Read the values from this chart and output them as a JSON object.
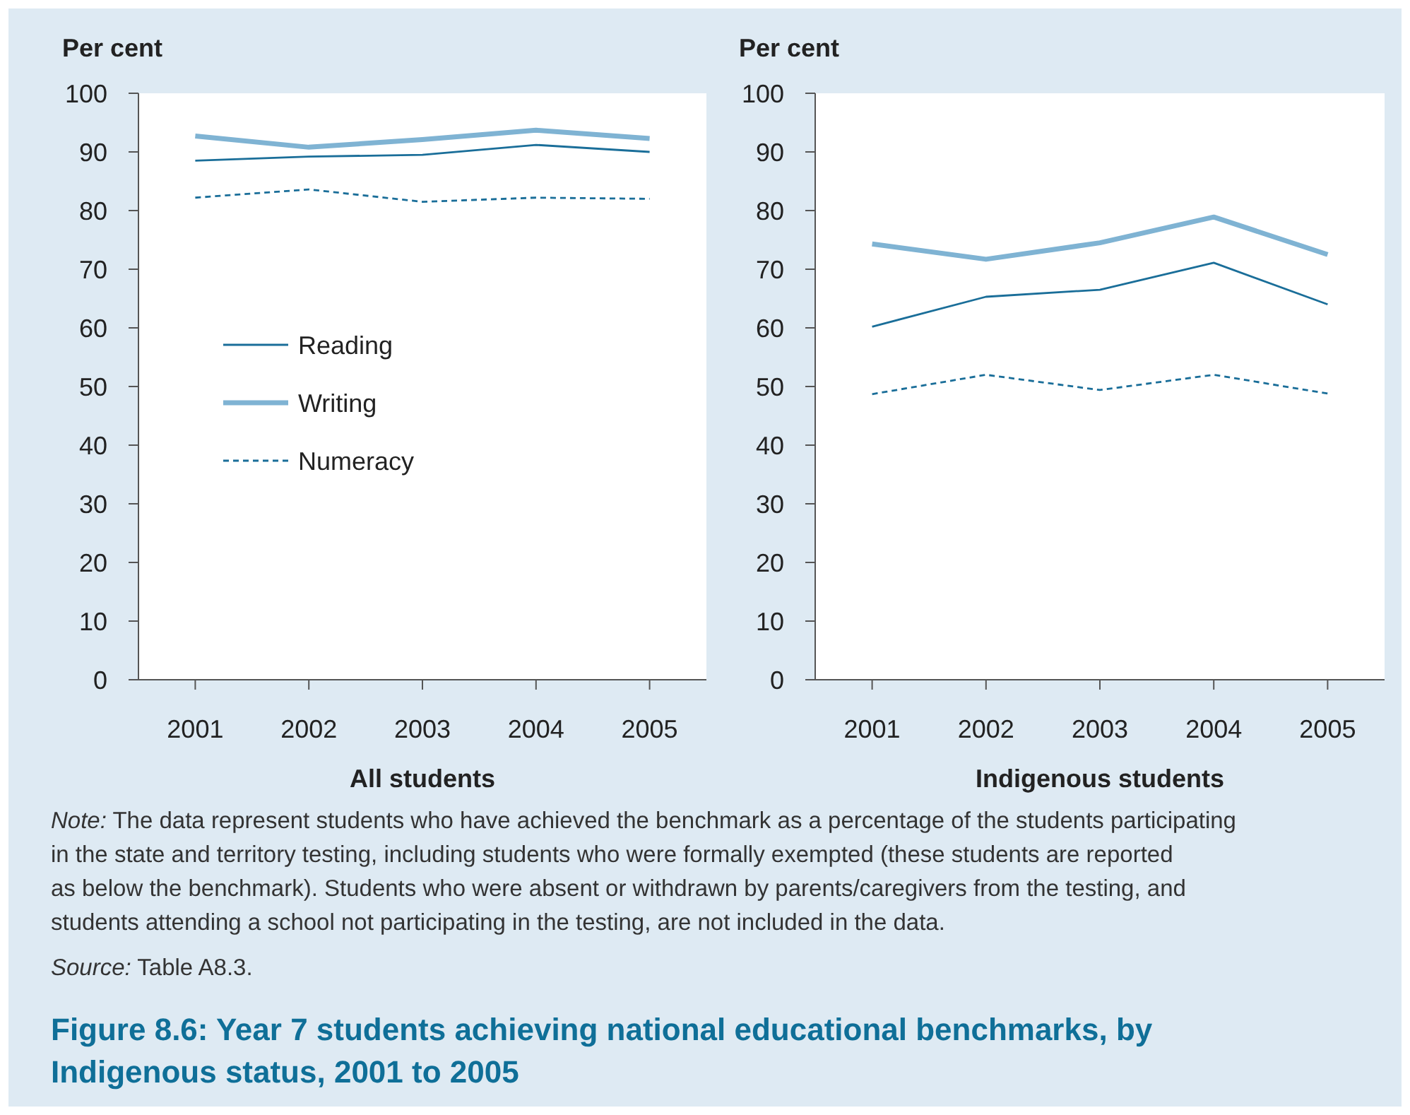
{
  "chart_data": [
    {
      "type": "line",
      "title": "Figure 8.6: Year 7 students achieving national educational benchmarks, by Indigenous status, 2001 to 2005",
      "ylabel": "Per cent",
      "xlabel": "All students",
      "categories": [
        "2001",
        "2002",
        "2003",
        "2004",
        "2005"
      ],
      "ylim": [
        0,
        100
      ],
      "yticks": [
        0,
        10,
        20,
        30,
        40,
        50,
        60,
        70,
        80,
        90,
        100
      ],
      "grid": false,
      "legend": "center left",
      "marker": "none",
      "series": [
        {
          "name": "Reading",
          "color": "#1a6e99",
          "line_style": "solid",
          "values": [
            88.5,
            89.2,
            89.5,
            91.2,
            90.0
          ]
        },
        {
          "name": "Writing",
          "color": "#7fb3d3",
          "line_style": "solid",
          "values": [
            92.7,
            90.8,
            92.1,
            93.7,
            92.3
          ]
        },
        {
          "name": "Numeracy",
          "color": "#1a6e99",
          "line_style": "dashed",
          "values": [
            82.2,
            83.6,
            81.5,
            82.2,
            82.0
          ]
        }
      ],
      "annotations": [
        "Note: The data represent students who have achieved the benchmark as a percentage of the students participating in the state and territory testing, including students who were formally exempted (these students are reported as below the benchmark). Students who were absent or withdrawn by parents/caregivers from the testing, and students attending a school not participating in the testing, are not included in the data.",
        "Source: Table A8.3."
      ]
    },
    {
      "type": "line",
      "ylabel": "Per cent",
      "xlabel": "Indigenous students",
      "categories": [
        "2001",
        "2002",
        "2003",
        "2004",
        "2005"
      ],
      "ylim": [
        0,
        100
      ],
      "yticks": [
        0,
        10,
        20,
        30,
        40,
        50,
        60,
        70,
        80,
        90,
        100
      ],
      "grid": false,
      "legend": false,
      "marker": "none",
      "series": [
        {
          "color": "#1a6e99",
          "line_style": "solid",
          "values": [
            60.2,
            65.3,
            66.5,
            71.1,
            64.0
          ]
        },
        {
          "color": "#7fb3d3",
          "line_style": "solid",
          "values": [
            74.3,
            71.7,
            74.5,
            78.9,
            72.5
          ]
        },
        {
          "color": "#1a6e99",
          "line_style": "dashed",
          "values": [
            48.7,
            52.0,
            49.4,
            52.0,
            48.8
          ]
        }
      ]
    }
  ]
}
